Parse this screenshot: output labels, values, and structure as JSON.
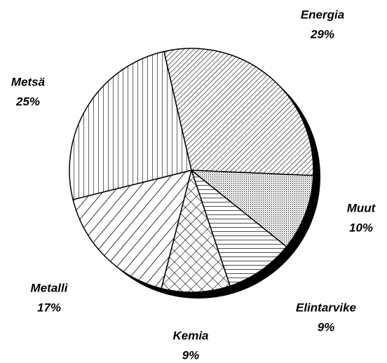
{
  "chart_data": {
    "type": "pie",
    "categories": [
      "Energia",
      "Muut",
      "Elintarvike",
      "Kemia",
      "Metalli",
      "Metsä"
    ],
    "values": [
      29,
      10,
      9,
      9,
      17,
      25
    ],
    "value_labels": [
      "29%",
      "10%",
      "9%",
      "9%",
      "17%",
      "25%"
    ]
  }
}
